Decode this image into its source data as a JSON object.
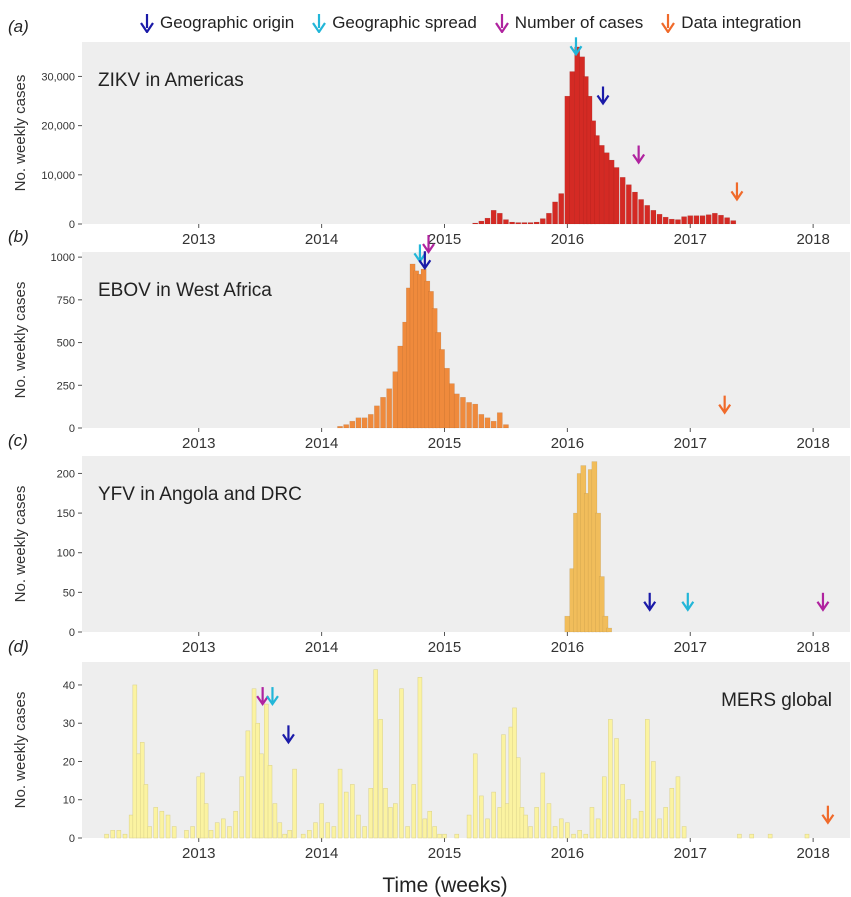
{
  "legend": [
    {
      "label": "Geographic origin",
      "color": "#1a1aa8",
      "icon": "arrow-down-icon"
    },
    {
      "label": "Geographic spread",
      "color": "#22b6d8",
      "icon": "arrow-down-icon"
    },
    {
      "label": "Number of cases",
      "color": "#b0239f",
      "icon": "arrow-down-icon"
    },
    {
      "label": "Data integration",
      "color": "#f06a2a",
      "icon": "arrow-down-icon"
    }
  ],
  "xlabel": "Time (weeks)",
  "chart_data": [
    {
      "type": "bar",
      "panel_label": "(a)",
      "title": "ZIKV in Americas",
      "ylabel": "No. weekly cases",
      "color": "#d42a24",
      "xlim": [
        2012.05,
        2018.3
      ],
      "ylim": [
        0,
        37000
      ],
      "yticks": [
        0,
        10000,
        20000,
        30000
      ],
      "ytick_labels": [
        "0",
        "10,000",
        "20,000",
        "30,000"
      ],
      "xticks": [
        2013,
        2014,
        2015,
        2016,
        2017,
        2018
      ],
      "xtick_labels": [
        "2013",
        "2014",
        "2015",
        "2016",
        "2017",
        "2018"
      ],
      "x": [
        2015.25,
        2015.3,
        2015.35,
        2015.4,
        2015.45,
        2015.5,
        2015.55,
        2015.6,
        2015.65,
        2015.7,
        2015.75,
        2015.8,
        2015.85,
        2015.9,
        2015.95,
        2016.0,
        2016.04,
        2016.08,
        2016.12,
        2016.15,
        2016.18,
        2016.21,
        2016.24,
        2016.28,
        2016.32,
        2016.36,
        2016.4,
        2016.45,
        2016.5,
        2016.55,
        2016.6,
        2016.65,
        2016.7,
        2016.75,
        2016.8,
        2016.85,
        2016.9,
        2016.95,
        2017.0,
        2017.05,
        2017.1,
        2017.15,
        2017.2,
        2017.25,
        2017.3,
        2017.35
      ],
      "values": [
        200,
        600,
        1200,
        2800,
        2200,
        900,
        400,
        300,
        300,
        300,
        400,
        1100,
        2200,
        4500,
        6200,
        26000,
        31000,
        36000,
        34000,
        30000,
        26000,
        21000,
        18000,
        16000,
        14500,
        13000,
        11500,
        9500,
        8000,
        6500,
        5000,
        3800,
        2800,
        2000,
        1400,
        1000,
        900,
        1500,
        1700,
        1700,
        1700,
        1900,
        2200,
        1800,
        1300,
        700
      ],
      "markers": [
        {
          "kind": "Geographic spread",
          "x": 2016.07,
          "y": 34500
        },
        {
          "kind": "Geographic origin",
          "x": 2016.29,
          "y": 24500
        },
        {
          "kind": "Number of cases",
          "x": 2016.58,
          "y": 12500
        },
        {
          "kind": "Data integration",
          "x": 2017.38,
          "y": 5000
        }
      ]
    },
    {
      "type": "bar",
      "panel_label": "(b)",
      "title": "EBOV in West Africa",
      "ylabel": "No. weekly cases",
      "color": "#ef8a3c",
      "xlim": [
        2012.05,
        2018.3
      ],
      "ylim": [
        0,
        1030
      ],
      "yticks": [
        0,
        250,
        500,
        750,
        1000
      ],
      "ytick_labels": [
        "0",
        "250",
        "500",
        "750",
        "1000"
      ],
      "xticks": [
        2013,
        2014,
        2015,
        2016,
        2017,
        2018
      ],
      "xtick_labels": [
        "2013",
        "2014",
        "2015",
        "2016",
        "2017",
        "2018"
      ],
      "x": [
        2014.15,
        2014.2,
        2014.25,
        2014.3,
        2014.35,
        2014.4,
        2014.45,
        2014.5,
        2014.55,
        2014.6,
        2014.64,
        2014.68,
        2014.71,
        2014.74,
        2014.77,
        2014.8,
        2014.83,
        2014.86,
        2014.89,
        2014.92,
        2014.95,
        2014.98,
        2015.02,
        2015.06,
        2015.1,
        2015.15,
        2015.2,
        2015.25,
        2015.3,
        2015.35,
        2015.4,
        2015.45,
        2015.5
      ],
      "values": [
        10,
        20,
        40,
        60,
        60,
        80,
        130,
        180,
        230,
        330,
        480,
        620,
        820,
        960,
        920,
        900,
        930,
        860,
        800,
        700,
        560,
        460,
        350,
        260,
        200,
        180,
        150,
        140,
        80,
        60,
        40,
        90,
        20
      ],
      "markers": [
        {
          "kind": "Geographic spread",
          "x": 2014.8,
          "y": 975
        },
        {
          "kind": "Geographic origin",
          "x": 2014.84,
          "y": 935
        },
        {
          "kind": "Number of cases",
          "x": 2014.87,
          "y": 1030
        },
        {
          "kind": "Data integration",
          "x": 2017.28,
          "y": 90
        }
      ]
    },
    {
      "type": "bar",
      "panel_label": "(c)",
      "title": "YFV in Angola and DRC",
      "ylabel": "No. weekly cases",
      "color": "#f1bd5b",
      "xlim": [
        2012.05,
        2018.3
      ],
      "ylim": [
        0,
        222
      ],
      "yticks": [
        0,
        50,
        100,
        150,
        200
      ],
      "ytick_labels": [
        "0",
        "50",
        "100",
        "150",
        "200"
      ],
      "xticks": [
        2013,
        2014,
        2015,
        2016,
        2017,
        2018
      ],
      "xtick_labels": [
        "2013",
        "2014",
        "2015",
        "2016",
        "2017",
        "2018"
      ],
      "x": [
        2016.0,
        2016.04,
        2016.07,
        2016.1,
        2016.13,
        2016.16,
        2016.19,
        2016.22,
        2016.25,
        2016.28,
        2016.31,
        2016.34
      ],
      "values": [
        20,
        80,
        150,
        200,
        210,
        175,
        205,
        215,
        150,
        70,
        20,
        5
      ],
      "markers": [
        {
          "kind": "Geographic origin",
          "x": 2016.67,
          "y": 28
        },
        {
          "kind": "Geographic spread",
          "x": 2016.98,
          "y": 28
        },
        {
          "kind": "Number of cases",
          "x": 2018.08,
          "y": 28
        }
      ]
    },
    {
      "type": "bar",
      "panel_label": "(d)",
      "title": "MERS global",
      "ylabel": "No. weekly cases",
      "color": "#fbf3a1",
      "xlim": [
        2012.05,
        2018.3
      ],
      "ylim": [
        0,
        46
      ],
      "yticks": [
        0,
        10,
        20,
        30,
        40
      ],
      "ytick_labels": [
        "0",
        "10",
        "20",
        "30",
        "40"
      ],
      "xticks": [
        2013,
        2014,
        2015,
        2016,
        2017,
        2018
      ],
      "xtick_labels": [
        "2013",
        "2014",
        "2015",
        "2016",
        "2017",
        "2018"
      ],
      "x": [
        2012.25,
        2012.3,
        2012.35,
        2012.4,
        2012.45,
        2012.48,
        2012.51,
        2012.54,
        2012.57,
        2012.6,
        2012.65,
        2012.7,
        2012.75,
        2012.8,
        2012.9,
        2012.95,
        2013.0,
        2013.03,
        2013.06,
        2013.1,
        2013.15,
        2013.2,
        2013.25,
        2013.3,
        2013.35,
        2013.4,
        2013.45,
        2013.48,
        2013.51,
        2013.55,
        2013.58,
        2013.62,
        2013.66,
        2013.7,
        2013.74,
        2013.78,
        2013.85,
        2013.9,
        2013.95,
        2014.0,
        2014.05,
        2014.1,
        2014.15,
        2014.2,
        2014.25,
        2014.3,
        2014.35,
        2014.4,
        2014.44,
        2014.48,
        2014.52,
        2014.56,
        2014.6,
        2014.65,
        2014.7,
        2014.75,
        2014.8,
        2014.84,
        2014.88,
        2014.92,
        2014.96,
        2015.0,
        2015.1,
        2015.2,
        2015.25,
        2015.3,
        2015.35,
        2015.4,
        2015.45,
        2015.48,
        2015.51,
        2015.54,
        2015.57,
        2015.6,
        2015.63,
        2015.66,
        2015.7,
        2015.75,
        2015.8,
        2015.85,
        2015.9,
        2015.95,
        2016.0,
        2016.05,
        2016.1,
        2016.15,
        2016.2,
        2016.25,
        2016.3,
        2016.35,
        2016.4,
        2016.45,
        2016.5,
        2016.55,
        2016.6,
        2016.65,
        2016.7,
        2016.75,
        2016.8,
        2016.85,
        2016.9,
        2016.95,
        2017.4,
        2017.5,
        2017.65,
        2017.95
      ],
      "values": [
        1,
        2,
        2,
        1,
        6,
        40,
        22,
        25,
        14,
        3,
        8,
        7,
        6,
        3,
        2,
        3,
        16,
        17,
        9,
        2,
        4,
        5,
        3,
        7,
        16,
        28,
        39,
        30,
        22,
        35,
        19,
        9,
        4,
        1,
        2,
        18,
        1,
        2,
        4,
        9,
        4,
        3,
        18,
        12,
        14,
        6,
        3,
        13,
        44,
        31,
        13,
        8,
        9,
        39,
        3,
        14,
        42,
        5,
        7,
        3,
        1,
        1,
        1,
        6,
        22,
        11,
        5,
        12,
        8,
        27,
        9,
        29,
        34,
        21,
        8,
        6,
        3,
        8,
        17,
        9,
        3,
        5,
        4,
        1,
        2,
        1,
        8,
        5,
        16,
        31,
        26,
        14,
        10,
        5,
        7,
        31,
        20,
        5,
        8,
        13,
        16,
        3,
        1,
        1,
        1,
        1
      ],
      "markers": [
        {
          "kind": "Number of cases",
          "x": 2013.52,
          "y": 35
        },
        {
          "kind": "Geographic spread",
          "x": 2013.6,
          "y": 35
        },
        {
          "kind": "Geographic origin",
          "x": 2013.73,
          "y": 25
        },
        {
          "kind": "Data integration",
          "x": 2018.12,
          "y": 4
        }
      ]
    }
  ]
}
